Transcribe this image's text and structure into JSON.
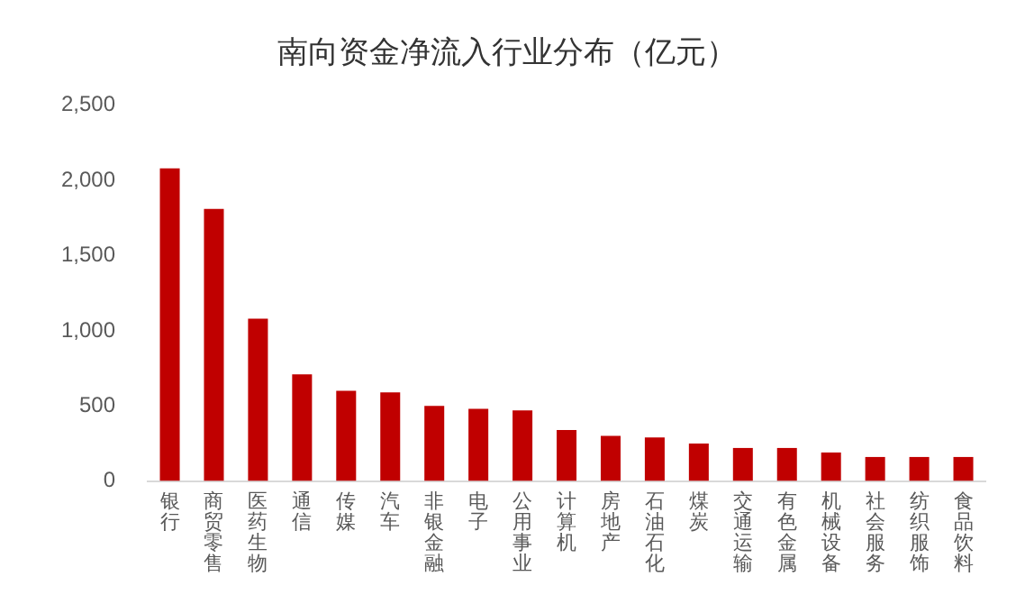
{
  "chart_data": {
    "type": "bar",
    "title": "南向资金净流入行业分布（亿元）",
    "categories": [
      "银行",
      "商贸零售",
      "医药生物",
      "通信",
      "传媒",
      "汽车",
      "非银金融",
      "电子",
      "公用事业",
      "计算机",
      "房地产",
      "石油石化",
      "煤炭",
      "交通运输",
      "有色金属",
      "机械设备",
      "社会服务",
      "纺织服饰",
      "食品饮料"
    ],
    "values": [
      2080,
      1810,
      1080,
      710,
      600,
      590,
      500,
      480,
      470,
      340,
      300,
      290,
      250,
      220,
      220,
      190,
      160,
      160,
      160
    ],
    "color": "#c00000",
    "ylim": [
      0,
      2500
    ],
    "yticks": [
      0,
      500,
      {
        "value": 1000,
        "label": "1,000"
      },
      {
        "value": 1500,
        "label": "1,500"
      },
      {
        "value": 2000,
        "label": "2,000"
      },
      {
        "value": 2500,
        "label": "2,500"
      }
    ],
    "grid": false,
    "legend": false
  }
}
